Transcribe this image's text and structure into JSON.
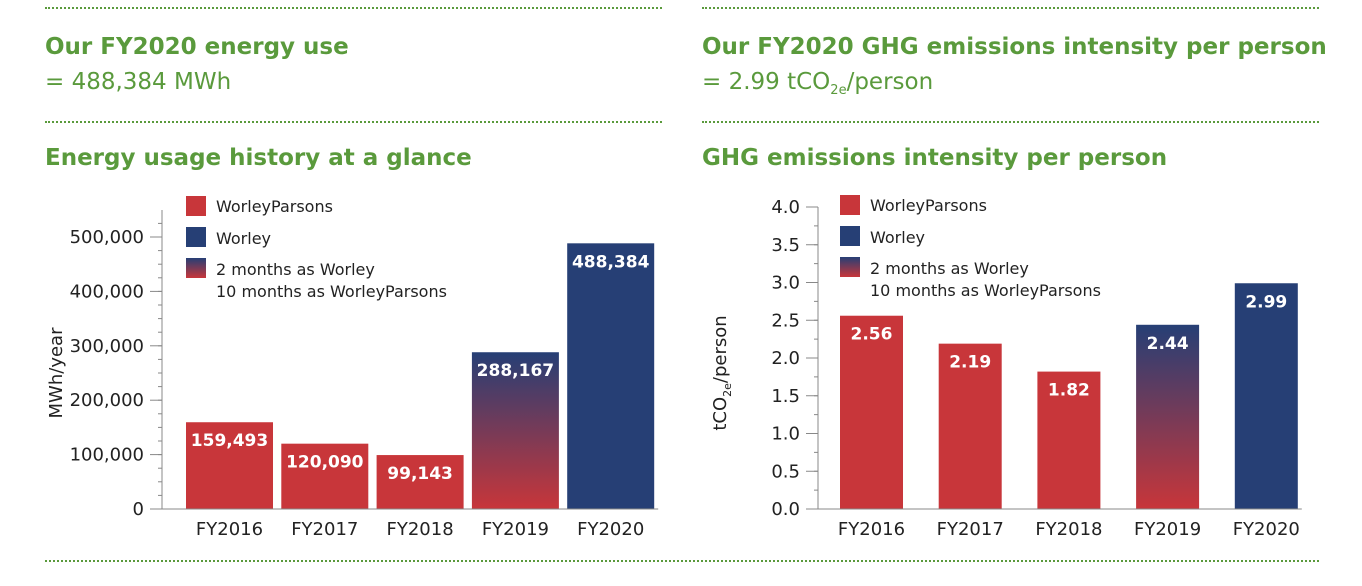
{
  "colors": {
    "green": "#5a9a3c",
    "red": "#c8363a",
    "blue": "#263f75"
  },
  "left": {
    "headline": "Our FY2020 energy use",
    "headline_value": "= 488,384 MWh",
    "chart_heading": "Energy usage history at a glance"
  },
  "right": {
    "headline": "Our FY2020 GHG emissions intensity per person",
    "headline_value_prefix": "= 2.99 tCO",
    "headline_value_sub": "2e",
    "headline_value_suffix": "/person",
    "chart_heading": "GHG emissions intensity per person"
  },
  "chart_data": [
    {
      "type": "bar",
      "categories": [
        "FY2016",
        "FY2017",
        "FY2018",
        "FY2019",
        "FY2020"
      ],
      "values": [
        159493,
        120090,
        99143,
        288167,
        488384
      ],
      "value_labels": [
        "159,493",
        "120,090",
        "99,143",
        "288,167",
        "488,384"
      ],
      "bar_kind": [
        "worleyparsons",
        "worleyparsons",
        "worleyparsons",
        "mixed",
        "worley"
      ],
      "ylabel": "MWh/year",
      "ylim": [
        0,
        500000
      ],
      "yticks": [
        0,
        100000,
        200000,
        300000,
        400000,
        500000
      ],
      "ytick_labels": [
        "0",
        "100,000",
        "200,000",
        "300,000",
        "400,000",
        "500,000"
      ],
      "legend": [
        "WorleyParsons",
        "Worley",
        "2 months as Worley",
        "10 months as WorleyParsons"
      ],
      "legend_position": "top-left"
    },
    {
      "type": "bar",
      "categories": [
        "FY2016",
        "FY2017",
        "FY2018",
        "FY2019",
        "FY2020"
      ],
      "values": [
        2.56,
        2.19,
        1.82,
        2.44,
        2.99
      ],
      "value_labels": [
        "2.56",
        "2.19",
        "1.82",
        "2.44",
        "2.99"
      ],
      "bar_kind": [
        "worleyparsons",
        "worleyparsons",
        "worleyparsons",
        "mixed",
        "worley"
      ],
      "ylabel_prefix": "tCO",
      "ylabel_sub": "2e",
      "ylabel_suffix": "/person",
      "ylim": [
        0,
        4.0
      ],
      "yticks": [
        0,
        0.5,
        1.0,
        1.5,
        2.0,
        2.5,
        3.0,
        3.5,
        4.0
      ],
      "ytick_labels": [
        "0.0",
        "0.5",
        "1.0",
        "1.5",
        "2.0",
        "2.5",
        "3.0",
        "3.5",
        "4.0"
      ],
      "legend": [
        "WorleyParsons",
        "Worley",
        "2 months as Worley",
        "10 months as WorleyParsons"
      ],
      "legend_position": "top-left"
    }
  ]
}
